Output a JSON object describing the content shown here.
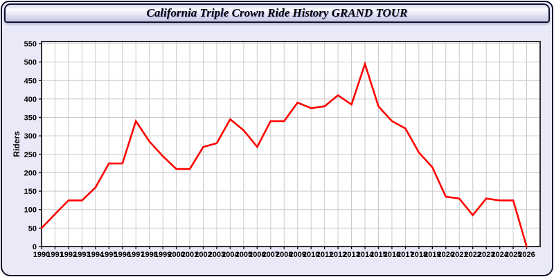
{
  "window": {
    "title": "California Triple Crown Ride History GRAND TOUR"
  },
  "chart_data": {
    "type": "line",
    "title": "California Triple Crown Ride History GRAND TOUR",
    "xlabel": "",
    "ylabel": "Riders",
    "x": [
      1990,
      1991,
      1992,
      1993,
      1994,
      1995,
      1996,
      1997,
      1998,
      1999,
      2000,
      2001,
      2002,
      2003,
      2004,
      2005,
      2006,
      2007,
      2008,
      2009,
      2010,
      2011,
      2012,
      2013,
      2014,
      2015,
      2016,
      2017,
      2018,
      2019,
      2020,
      2021,
      2022,
      2023,
      2024,
      2025,
      2026
    ],
    "series": [
      {
        "name": "Riders",
        "color": "#ff0000",
        "values": [
          50,
          88,
          125,
          125,
          160,
          225,
          225,
          340,
          285,
          245,
          210,
          210,
          270,
          280,
          345,
          315,
          270,
          340,
          340,
          390,
          375,
          380,
          410,
          385,
          495,
          380,
          340,
          320,
          255,
          215,
          135,
          130,
          85,
          130,
          125,
          125,
          0
        ]
      }
    ],
    "xlim": [
      1990,
      2027
    ],
    "ylim": [
      0,
      550
    ],
    "ytick_step": 50,
    "grid": true,
    "legend": false
  },
  "style": {
    "panel_bg": "#e9e9f8",
    "plot_bg": "#ffffff",
    "grid_color": "#c9c9c9",
    "axis_color": "#000000",
    "line_color": "#ff0000",
    "border_color": "#10102c"
  }
}
